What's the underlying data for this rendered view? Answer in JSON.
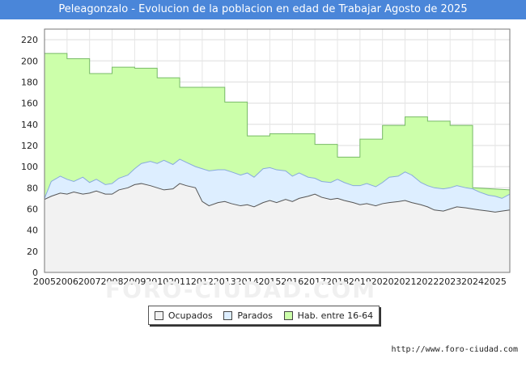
{
  "header": {
    "title": "Peleagonzalo - Evolucion de la poblacion en edad de Trabajar Agosto de 2025"
  },
  "legend": {
    "items": [
      {
        "label": "Ocupados",
        "color": "#f2f2f2"
      },
      {
        "label": "Parados",
        "color": "#ddeeff"
      },
      {
        "label": "Hab. entre 16-64",
        "color": "#ccffaa"
      }
    ]
  },
  "footer": {
    "url": "http://www.foro-ciudad.com"
  },
  "watermark": {
    "text": "FORO-CIUDAD.COM"
  },
  "chart_data": {
    "type": "area",
    "title": "Peleagonzalo - Evolucion de la poblacion en edad de Trabajar Agosto de 2025",
    "xlabel": "",
    "ylabel": "",
    "xlim": [
      2005,
      2025.65
    ],
    "ylim": [
      0,
      230
    ],
    "yticks": [
      0,
      20,
      40,
      60,
      80,
      100,
      120,
      140,
      160,
      180,
      200,
      220
    ],
    "xticks": [
      "2005",
      "2006",
      "2007",
      "2008",
      "2009",
      "2010",
      "2011",
      "2012",
      "2013",
      "2014",
      "2015",
      "2016",
      "2017",
      "2018",
      "2019",
      "2020",
      "2021",
      "2022",
      "2023",
      "2024",
      "2025"
    ],
    "grid": true,
    "legend_position": "bottom",
    "colors": {
      "hab_fill": "#ccffaa",
      "hab_line": "#77bb66",
      "parados_fill": "#ddeeff",
      "parados_line": "#88aadd",
      "ocupados_fill": "#f2f2f2",
      "ocupados_line": "#555555"
    },
    "series": [
      {
        "name": "Hab. entre 16-64",
        "x": [
          2005,
          2006,
          2006,
          2007,
          2007,
          2008,
          2008,
          2009,
          2009,
          2010,
          2010,
          2011,
          2011,
          2012,
          2012,
          2013,
          2013,
          2014,
          2014,
          2015,
          2015,
          2016,
          2016,
          2017,
          2017,
          2018,
          2018,
          2019,
          2019,
          2020,
          2020,
          2021,
          2021,
          2022,
          2022,
          2023,
          2023,
          2024,
          2024,
          2025.65
        ],
        "values": [
          207,
          207,
          202,
          202,
          188,
          188,
          194,
          194,
          193,
          193,
          184,
          184,
          175,
          175,
          175,
          175,
          161,
          161,
          129,
          129,
          131,
          131,
          131,
          131,
          121,
          121,
          109,
          109,
          126,
          126,
          139,
          139,
          147,
          147,
          143,
          143,
          139,
          139,
          80,
          78
        ]
      },
      {
        "name": "Parados",
        "x": [
          2005,
          2005.3,
          2005.7,
          2006,
          2006.3,
          2006.7,
          2007,
          2007.3,
          2007.7,
          2008,
          2008.3,
          2008.7,
          2009,
          2009.3,
          2009.7,
          2010,
          2010.3,
          2010.7,
          2011,
          2011.3,
          2011.7,
          2012,
          2012.3,
          2012.7,
          2013,
          2013.3,
          2013.7,
          2014,
          2014.3,
          2014.7,
          2015,
          2015.3,
          2015.7,
          2016,
          2016.3,
          2016.7,
          2017,
          2017.3,
          2017.7,
          2018,
          2018.3,
          2018.7,
          2019,
          2019.3,
          2019.7,
          2020,
          2020.3,
          2020.7,
          2021,
          2021.3,
          2021.7,
          2022,
          2022.3,
          2022.7,
          2023,
          2023.3,
          2023.7,
          2024,
          2024.3,
          2024.7,
          2025,
          2025.3,
          2025.65
        ],
        "values": [
          70,
          86,
          91,
          88,
          86,
          90,
          85,
          88,
          83,
          84,
          89,
          92,
          98,
          103,
          105,
          103,
          106,
          102,
          107,
          104,
          100,
          98,
          96,
          97,
          97,
          95,
          92,
          94,
          90,
          98,
          99,
          97,
          96,
          91,
          94,
          90,
          89,
          86,
          85,
          88,
          85,
          82,
          82,
          84,
          81,
          85,
          90,
          91,
          95,
          92,
          85,
          82,
          80,
          79,
          80,
          82,
          80,
          79,
          76,
          73,
          72,
          70,
          74
        ]
      },
      {
        "name": "Ocupados",
        "x": [
          2005,
          2005.3,
          2005.7,
          2006,
          2006.3,
          2006.7,
          2007,
          2007.3,
          2007.7,
          2008,
          2008.3,
          2008.7,
          2009,
          2009.3,
          2009.7,
          2010,
          2010.3,
          2010.7,
          2011,
          2011.3,
          2011.7,
          2012,
          2012.3,
          2012.7,
          2013,
          2013.3,
          2013.7,
          2014,
          2014.3,
          2014.7,
          2015,
          2015.3,
          2015.7,
          2016,
          2016.3,
          2016.7,
          2017,
          2017.3,
          2017.7,
          2018,
          2018.3,
          2018.7,
          2019,
          2019.3,
          2019.7,
          2020,
          2020.3,
          2020.7,
          2021,
          2021.3,
          2021.7,
          2022,
          2022.3,
          2022.7,
          2023,
          2023.3,
          2023.7,
          2024,
          2024.3,
          2024.7,
          2025,
          2025.3,
          2025.65
        ],
        "values": [
          69,
          72,
          75,
          74,
          76,
          74,
          75,
          77,
          74,
          74,
          78,
          80,
          83,
          84,
          82,
          80,
          78,
          79,
          84,
          82,
          80,
          67,
          63,
          66,
          67,
          65,
          63,
          64,
          62,
          66,
          68,
          66,
          69,
          67,
          70,
          72,
          74,
          71,
          69,
          70,
          68,
          66,
          64,
          65,
          63,
          65,
          66,
          67,
          68,
          66,
          64,
          62,
          59,
          58,
          60,
          62,
          61,
          60,
          59,
          58,
          57,
          58,
          59
        ]
      }
    ]
  }
}
